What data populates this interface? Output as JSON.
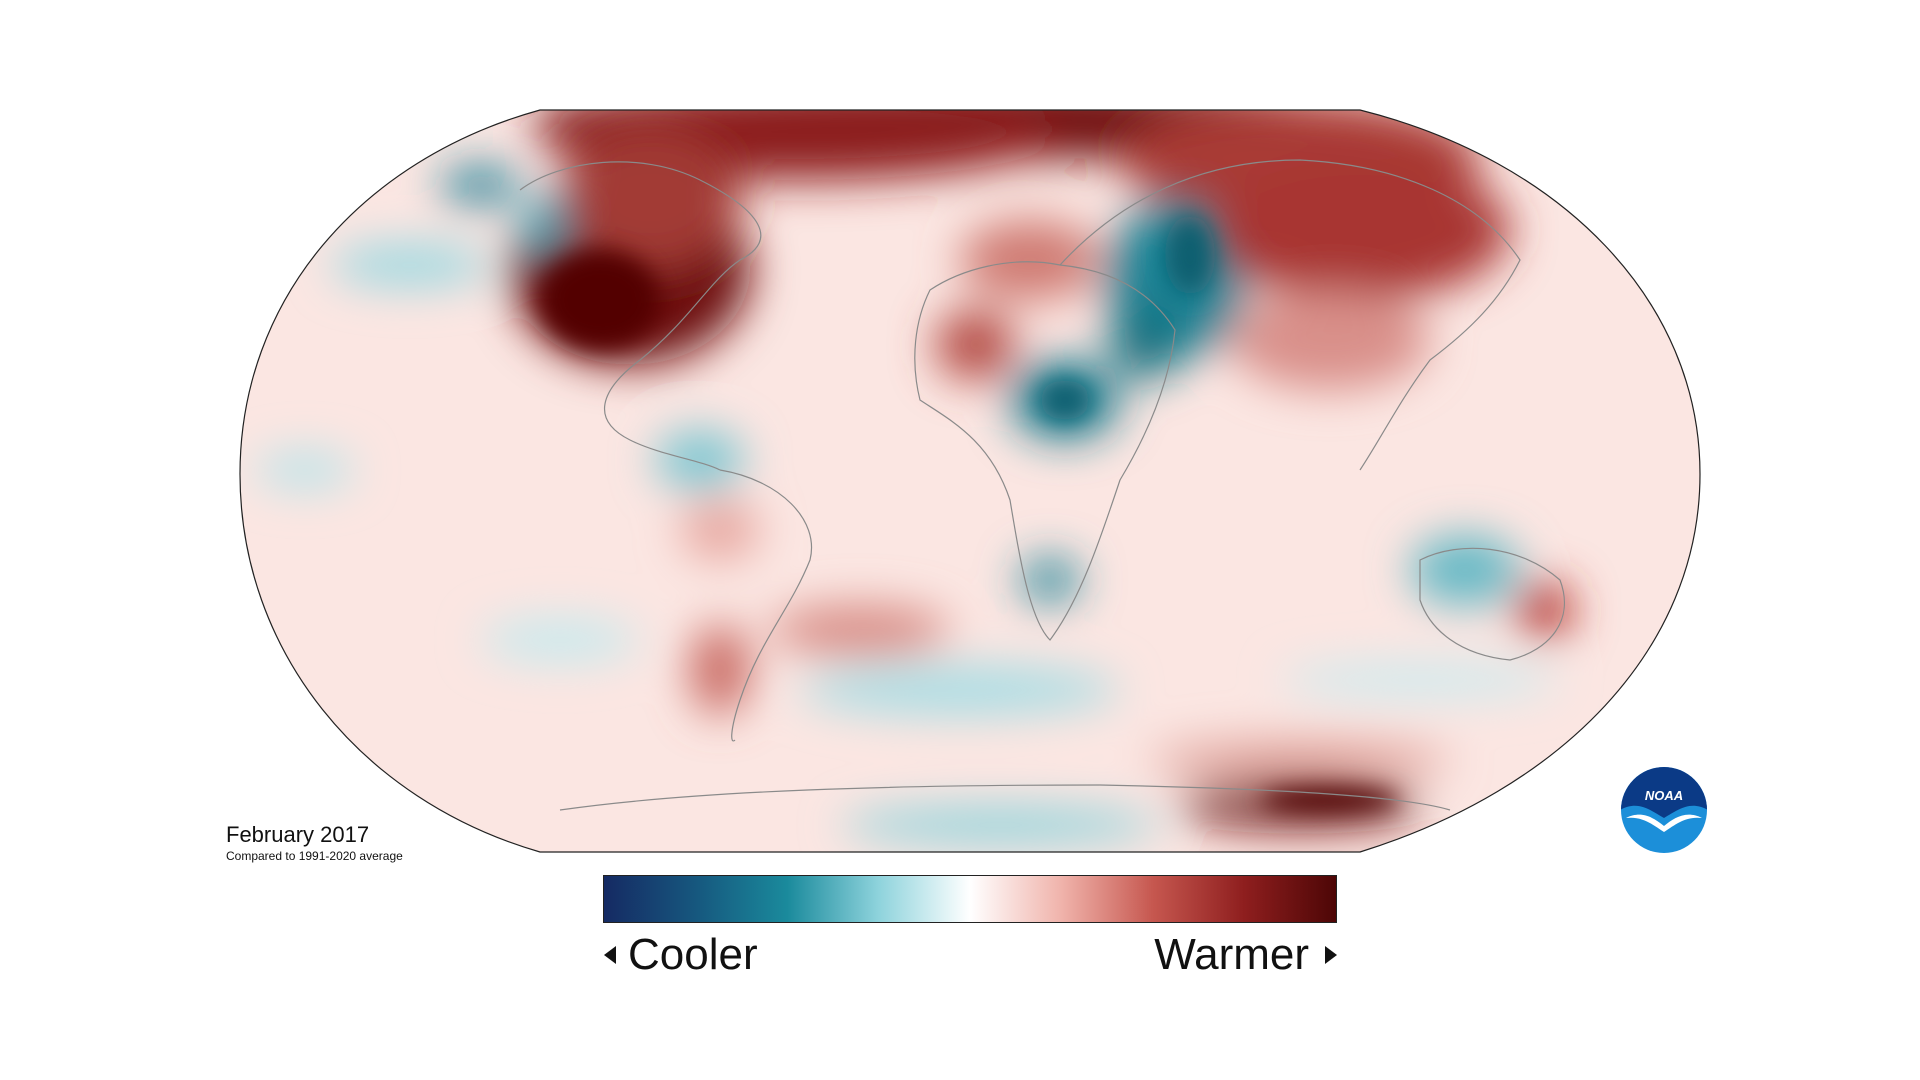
{
  "map": {
    "date_label": "February 2017",
    "baseline_label": "Compared to 1991-2020 average"
  },
  "legend": {
    "cooler_label": "Cooler",
    "warmer_label": "Warmer",
    "gradient_colors": [
      "#152a63",
      "#16577e",
      "#1a8a9c",
      "#8ed3dc",
      "#ffffff",
      "#f0b3ab",
      "#c6574f",
      "#8e1e1e",
      "#4d0606"
    ]
  },
  "logo": {
    "text": "NOAA",
    "colors": {
      "dark": "#0b3a86",
      "light": "#1c8fd9"
    }
  }
}
